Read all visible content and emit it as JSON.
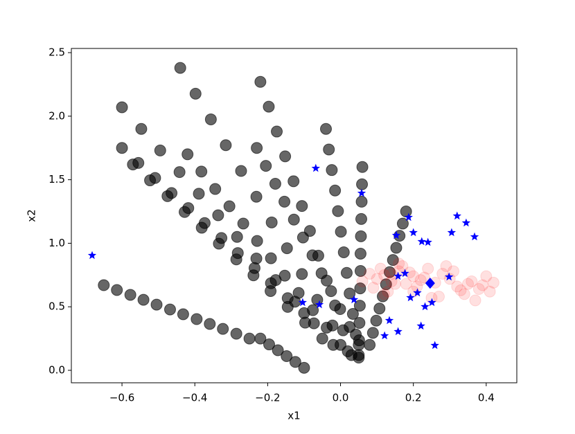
{
  "chart_data": {
    "type": "scatter",
    "xlabel": "x1",
    "ylabel": "x2",
    "xlim": [
      -0.739,
      0.484
    ],
    "ylim": [
      -0.098,
      2.533
    ],
    "xticks": [
      {
        "value": -0.6,
        "label": "−0.6"
      },
      {
        "value": -0.4,
        "label": "−0.4"
      },
      {
        "value": -0.2,
        "label": "−0.2"
      },
      {
        "value": 0.0,
        "label": "0.0"
      },
      {
        "value": 0.2,
        "label": "0.2"
      },
      {
        "value": 0.4,
        "label": "0.4"
      }
    ],
    "yticks": [
      {
        "value": 0.0,
        "label": "0.0"
      },
      {
        "value": 0.5,
        "label": "0.5"
      },
      {
        "value": 1.0,
        "label": "1.0"
      },
      {
        "value": 1.5,
        "label": "1.5"
      },
      {
        "value": 2.0,
        "label": "2.0"
      },
      {
        "value": 2.5,
        "label": "2.5"
      }
    ],
    "grid": false,
    "series": [
      {
        "color": "#000000",
        "marker": "circle",
        "opacity": 0.6,
        "x": [
          -0.44,
          -0.398,
          -0.356,
          -0.315,
          -0.273,
          -0.231,
          -0.189,
          -0.147,
          -0.106,
          -0.064,
          -0.022,
          0.02,
          -0.22,
          -0.197,
          -0.175,
          -0.152,
          -0.129,
          -0.106,
          -0.084,
          -0.061,
          -0.038,
          -0.015,
          0.007,
          0.03,
          -0.6,
          -0.547,
          -0.495,
          -0.442,
          -0.389,
          -0.336,
          -0.284,
          -0.231,
          -0.178,
          -0.125,
          -0.073,
          -0.02,
          -0.57,
          -0.523,
          -0.475,
          -0.428,
          -0.381,
          -0.334,
          -0.286,
          -0.239,
          -0.192,
          -0.145,
          -0.097,
          -0.05,
          -0.42,
          -0.382,
          -0.344,
          -0.305,
          -0.267,
          -0.229,
          -0.191,
          -0.153,
          -0.115,
          -0.076,
          -0.038,
          0,
          -0.23,
          -0.205,
          -0.179,
          -0.154,
          -0.128,
          -0.103,
          -0.077,
          -0.052,
          -0.026,
          -0.001,
          0.025,
          0.05,
          -0.04,
          -0.032,
          -0.024,
          -0.015,
          -0.007,
          0.001,
          0.009,
          0.017,
          0.025,
          0.034,
          0.042,
          0.05,
          0.06,
          0.059,
          0.058,
          0.057,
          0.056,
          0.055,
          0.055,
          0.054,
          0.053,
          0.052,
          0.051,
          0.05,
          0.18,
          0.171,
          0.162,
          0.153,
          0.144,
          0.135,
          0.125,
          0.116,
          0.107,
          0.098,
          0.089,
          0.08,
          -0.65,
          -0.614,
          -0.577,
          -0.541,
          -0.505,
          -0.468,
          -0.432,
          -0.395,
          -0.359,
          -0.323,
          -0.286,
          -0.25,
          -0.22,
          -0.196,
          -0.172,
          -0.148,
          -0.124,
          -0.1,
          -0.6,
          -0.555,
          -0.509,
          -0.464,
          -0.418,
          -0.373,
          -0.327,
          -0.282,
          -0.236,
          -0.191,
          -0.145,
          -0.1
        ],
        "values": [
          2.38,
          2.177,
          1.975,
          1.772,
          1.569,
          1.366,
          1.164,
          0.961,
          0.758,
          0.555,
          0.353,
          0.15,
          2.27,
          2.075,
          1.879,
          1.684,
          1.488,
          1.293,
          1.097,
          0.902,
          0.706,
          0.511,
          0.315,
          0.12,
          2.07,
          1.9,
          1.73,
          1.56,
          1.39,
          1.22,
          1.05,
          0.88,
          0.71,
          0.54,
          0.37,
          0.2,
          1.62,
          1.495,
          1.371,
          1.246,
          1.122,
          0.997,
          0.873,
          0.748,
          0.624,
          0.499,
          0.375,
          0.25,
          1.7,
          1.564,
          1.427,
          1.291,
          1.155,
          1.018,
          0.882,
          0.745,
          0.609,
          0.473,
          0.336,
          0.2,
          1.75,
          1.609,
          1.468,
          1.327,
          1.186,
          1.045,
          0.905,
          0.764,
          0.623,
          0.482,
          0.341,
          0.2,
          1.9,
          1.738,
          1.576,
          1.415,
          1.253,
          1.091,
          0.929,
          0.767,
          0.605,
          0.444,
          0.282,
          0.12,
          1.6,
          1.464,
          1.327,
          1.191,
          1.055,
          0.918,
          0.782,
          0.645,
          0.509,
          0.373,
          0.236,
          0.1,
          1.25,
          1.155,
          1.059,
          0.964,
          0.868,
          0.773,
          0.677,
          0.582,
          0.486,
          0.391,
          0.295,
          0.2,
          0.67,
          0.632,
          0.594,
          0.555,
          0.517,
          0.479,
          0.441,
          0.403,
          0.365,
          0.326,
          0.288,
          0.25,
          0.25,
          0.204,
          0.158,
          0.112,
          0.066,
          0.02,
          1.75,
          1.632,
          1.514,
          1.395,
          1.277,
          1.159,
          1.041,
          0.923,
          0.805,
          0.686,
          0.568,
          0.45
        ]
      },
      {
        "color": "#ff0000",
        "marker": "circle",
        "opacity": 0.12,
        "x": [
          0.1,
          0.12,
          0.14,
          0.16,
          0.18,
          0.2,
          0.22,
          0.24,
          0.09,
          0.11,
          0.13,
          0.15,
          0.17,
          0.19,
          0.21,
          0.23,
          0.08,
          0.12,
          0.16,
          0.2,
          0.26,
          0.28,
          0.3,
          0.32,
          0.34,
          0.36,
          0.38,
          0.4,
          0.41,
          0.27,
          0.29,
          0.31,
          0.33,
          0.35,
          0.37,
          0.39,
          0.06,
          0.25,
          0.42,
          0.14
        ],
        "values": [
          0.72,
          0.75,
          0.7,
          0.78,
          0.68,
          0.74,
          0.71,
          0.8,
          0.65,
          0.8,
          0.62,
          0.68,
          0.82,
          0.77,
          0.66,
          0.73,
          0.76,
          0.6,
          0.84,
          0.62,
          0.69,
          0.76,
          0.72,
          0.66,
          0.6,
          0.7,
          0.64,
          0.74,
          0.62,
          0.58,
          0.82,
          0.78,
          0.63,
          0.68,
          0.55,
          0.67,
          0.7,
          0.57,
          0.69,
          0.76
        ]
      },
      {
        "color": "#0000ff",
        "marker": "star",
        "opacity": 1,
        "x": [
          -0.682,
          -0.068,
          0.058,
          -0.104,
          -0.058,
          0.037,
          0.153,
          0.187,
          0.2,
          0.223,
          0.24,
          0.32,
          0.345,
          0.368,
          0.305,
          0.298,
          0.158,
          0.177,
          0.192,
          0.211,
          0.232,
          0.251,
          0.134,
          0.158,
          0.121,
          0.221,
          0.259
        ],
        "values": [
          0.904,
          1.59,
          1.394,
          0.534,
          0.517,
          0.556,
          1.062,
          1.204,
          1.084,
          1.013,
          1.008,
          1.215,
          1.16,
          1.051,
          1.084,
          0.735,
          0.741,
          0.763,
          0.572,
          0.61,
          0.501,
          0.534,
          0.392,
          0.305,
          0.272,
          0.349,
          0.196
        ]
      },
      {
        "color": "#0000ff",
        "marker": "diamond",
        "opacity": 1,
        "x": [
          0.246
        ],
        "values": [
          0.686
        ]
      }
    ]
  }
}
